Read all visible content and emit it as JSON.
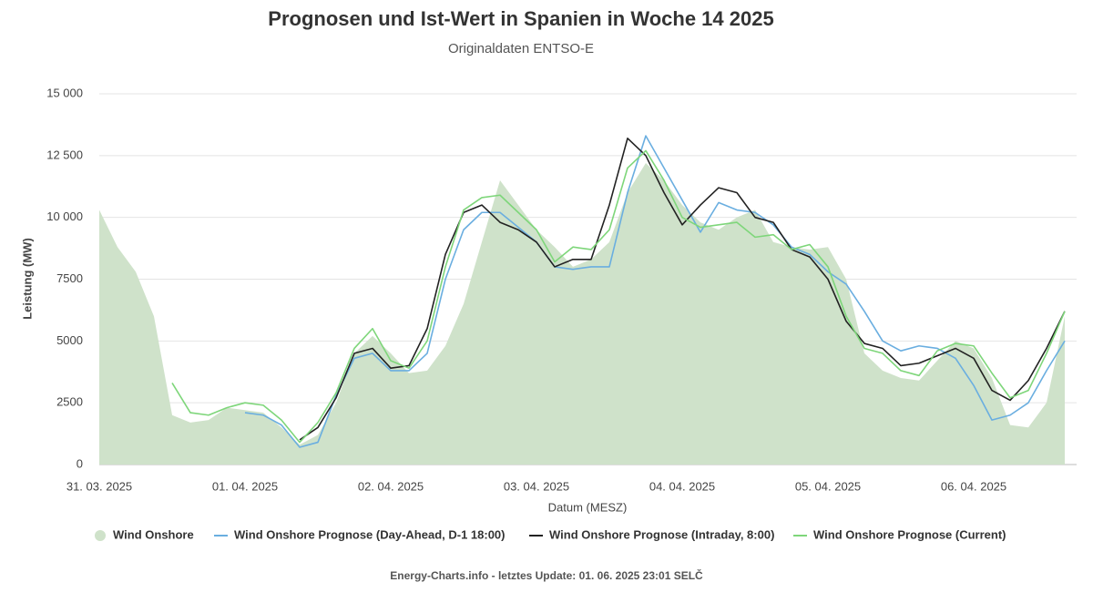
{
  "chart_data": {
    "type": "line",
    "title": "Prognosen und Ist-Wert in Spanien in Woche 14 2025",
    "subtitle": "Originaldaten ENTSO-E",
    "x_label": "Datum (MESZ)",
    "y_label": "Leistung (MW)",
    "footer": "Energy-Charts.info - letztes Update: 01. 06. 2025 23:01 SELČ",
    "categories": [
      "31. 03. 2025",
      null,
      null,
      null,
      null,
      null,
      null,
      null,
      "01. 04. 2025",
      null,
      null,
      null,
      null,
      null,
      null,
      null,
      "02. 04. 2025",
      null,
      null,
      null,
      null,
      null,
      null,
      null,
      "03. 04. 2025",
      null,
      null,
      null,
      null,
      null,
      null,
      null,
      "04. 04. 2025",
      null,
      null,
      null,
      null,
      null,
      null,
      null,
      "05. 04. 2025",
      null,
      null,
      null,
      null,
      null,
      null,
      null,
      "06. 04. 2025",
      null,
      null,
      null,
      null,
      null
    ],
    "series": [
      {
        "name": "Wind Onshore",
        "color": "#cfe2ca",
        "style": "area",
        "values": [
          10300,
          8800,
          7800,
          6000,
          2000,
          1700,
          1800,
          2300,
          2200,
          2100,
          1500,
          800,
          1200,
          2500,
          4500,
          5200,
          4500,
          3700,
          3800,
          4800,
          6500,
          9000,
          11500,
          10500,
          9500,
          8800,
          8000,
          8300,
          9000,
          11000,
          12200,
          11500,
          10500,
          9800,
          9500,
          10000,
          10300,
          9000,
          8800,
          8700,
          8800,
          7500,
          4500,
          3800,
          3500,
          3400,
          4200,
          5000,
          4700,
          3500,
          1600,
          1500,
          2500,
          6000
        ]
      },
      {
        "name": "Wind Onshore Prognose (Day-Ahead, D-1 18:00)",
        "color": "#6aaee0",
        "style": "line",
        "values": [
          null,
          null,
          null,
          null,
          null,
          null,
          null,
          null,
          2100,
          2000,
          1600,
          700,
          900,
          2800,
          4300,
          4500,
          3800,
          3800,
          4500,
          7500,
          9500,
          10200,
          10200,
          9600,
          9000,
          8000,
          7900,
          8000,
          8000,
          11000,
          13300,
          12000,
          10700,
          9400,
          10600,
          10300,
          10200,
          9700,
          8800,
          8500,
          7800,
          7300,
          6200,
          5000,
          4600,
          4800,
          4700,
          4300,
          3200,
          1800,
          2000,
          2500,
          3800,
          5000
        ]
      },
      {
        "name": "Wind Onshore Prognose (Intraday, 8:00)",
        "color": "#222222",
        "style": "line",
        "values": [
          null,
          null,
          null,
          null,
          null,
          null,
          null,
          null,
          null,
          null,
          null,
          1000,
          1500,
          2700,
          4500,
          4700,
          3900,
          4000,
          5500,
          8500,
          10200,
          10500,
          9800,
          9500,
          9000,
          8000,
          8300,
          8300,
          10500,
          13200,
          12500,
          11000,
          9700,
          10500,
          11200,
          11000,
          10000,
          9800,
          8700,
          8400,
          7500,
          5800,
          4900,
          4700,
          4000,
          4100,
          4400,
          4700,
          4300,
          3000,
          2600,
          3400,
          4700,
          6200
        ]
      },
      {
        "name": "Wind Onshore Prognose (Current)",
        "color": "#7ed67a",
        "style": "line",
        "values": [
          null,
          null,
          null,
          null,
          3300,
          2100,
          2000,
          2300,
          2500,
          2400,
          1800,
          900,
          1700,
          2900,
          4700,
          5500,
          4200,
          3900,
          5000,
          8000,
          10300,
          10800,
          10900,
          10200,
          9500,
          8200,
          8800,
          8700,
          9500,
          12000,
          12700,
          11500,
          10000,
          9600,
          9700,
          9800,
          9200,
          9300,
          8700,
          8900,
          8000,
          6000,
          4700,
          4500,
          3800,
          3600,
          4600,
          4900,
          4800,
          3700,
          2700,
          3000,
          4500,
          6200
        ]
      }
    ],
    "ylim": [
      0,
      15000
    ],
    "yticks": [
      0,
      {
        "value": 2500,
        "label": "2500"
      },
      {
        "value": 5000,
        "label": "5000"
      },
      {
        "value": 7500,
        "label": "7500"
      },
      {
        "value": 10000,
        "label": "10 000"
      },
      {
        "value": 12500,
        "label": "12 500"
      },
      {
        "value": 15000,
        "label": "15 000"
      }
    ],
    "grid": true
  }
}
